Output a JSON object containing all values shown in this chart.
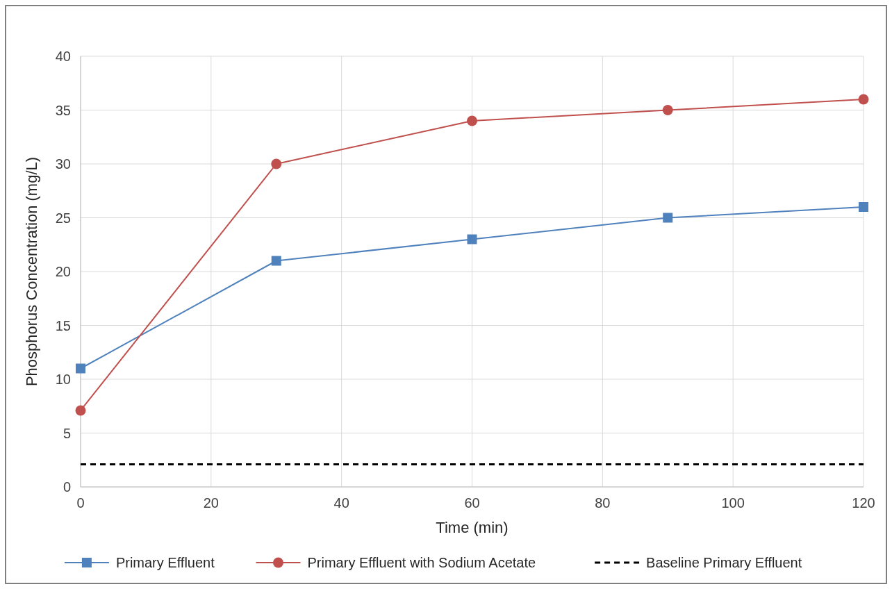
{
  "chart_data": {
    "type": "line",
    "xlabel": "Time (min)",
    "ylabel": "Phosphorus Concentration (mg/L)",
    "x": [
      0,
      30,
      60,
      90,
      120
    ],
    "series": [
      {
        "name": "Primary Effluent",
        "color": "#4f81bd",
        "marker": "square",
        "values": [
          11,
          21,
          23,
          25,
          26
        ]
      },
      {
        "name": "Primary Effluent with Sodium Acetate",
        "color": "#c0504d",
        "marker": "circle",
        "values": [
          7.1,
          30,
          34,
          35,
          36
        ]
      },
      {
        "name": "Baseline Primary Effluent",
        "color": "#000000",
        "marker": "none",
        "line_style": "dashed",
        "x": [
          0,
          120
        ],
        "values": [
          2.1,
          2.1
        ]
      }
    ],
    "xlim": [
      0,
      120
    ],
    "xticks": [
      0,
      20,
      40,
      60,
      80,
      100,
      120
    ],
    "ylim": [
      0,
      40
    ],
    "yticks": [
      0,
      5,
      10,
      15,
      20,
      25,
      30,
      35,
      40
    ],
    "grid": true,
    "legend": "bottom",
    "line_style": "solid"
  }
}
